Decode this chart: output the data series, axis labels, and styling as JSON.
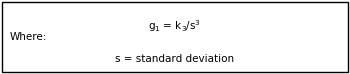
{
  "main_equation": "g$_1$ = k$_3$/s$^3$",
  "where_label": "Where:",
  "sub_equation": "s = standard deviation",
  "bg_color": "#ffffff",
  "border_color": "#000000",
  "text_color": "#000000",
  "main_fontsize": 7.5,
  "sub_fontsize": 7.5,
  "where_fontsize": 7.5,
  "figwidth": 3.5,
  "figheight": 0.74,
  "dpi": 100
}
